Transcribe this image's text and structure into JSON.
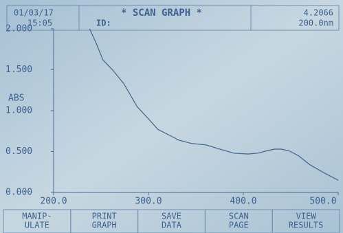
{
  "header": {
    "date": "01/03/17",
    "time": "15:05",
    "title": "* SCAN GRAPH *",
    "id_label": "ID:",
    "reading": "4.2066",
    "wavelength": "200.0nm"
  },
  "chart_data": {
    "type": "line",
    "y_label": "ABS",
    "x": [
      238,
      245,
      252,
      262,
      274,
      288,
      300,
      310,
      322,
      332,
      345,
      361,
      375,
      390,
      405,
      415,
      425,
      433,
      440,
      448,
      458,
      470,
      485,
      500
    ],
    "series": [
      {
        "color": "#4a6b8e",
        "values": [
          2.0,
          1.82,
          1.62,
          1.5,
          1.33,
          1.05,
          0.9,
          0.77,
          0.7,
          0.64,
          0.6,
          0.58,
          0.53,
          0.48,
          0.47,
          0.48,
          0.51,
          0.53,
          0.53,
          0.51,
          0.45,
          0.34,
          0.24,
          0.15
        ]
      }
    ],
    "xlim": [
      200,
      500
    ],
    "ylim": [
      0,
      2
    ],
    "xticks": [
      {
        "value": 200,
        "label": "200.0"
      },
      {
        "value": 300,
        "label": "300.0"
      },
      {
        "value": 400,
        "label": "400.0"
      },
      {
        "value": 500,
        "label": "500.0"
      }
    ],
    "yticks": [
      {
        "value": 0,
        "label": "0.000"
      },
      {
        "value": 0.5,
        "label": "0.500"
      },
      {
        "value": 1,
        "label": "1.000"
      },
      {
        "value": 1.5,
        "label": "1.500"
      },
      {
        "value": 2,
        "label": "2.000"
      }
    ],
    "grid": false
  },
  "softkeys": [
    [
      "MANIP-",
      "ULATE"
    ],
    [
      "PRINT",
      "GRAPH"
    ],
    [
      "SAVE",
      "DATA"
    ],
    [
      "SCAN",
      "PAGE"
    ],
    [
      "VIEW",
      "RESULTS"
    ]
  ]
}
